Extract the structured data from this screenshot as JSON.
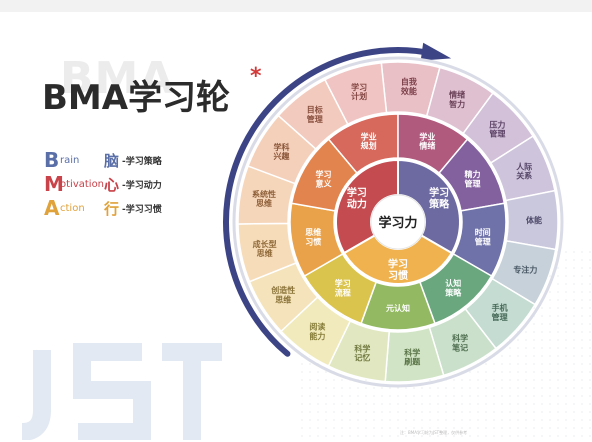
{
  "title": {
    "shadow_text": "BMA",
    "main_text": "BMA学习轮",
    "star": "*"
  },
  "legend": [
    {
      "letter": "B",
      "rest": "rain",
      "cn": "脑",
      "desc": "-学习策略",
      "color": "#5a6fa8"
    },
    {
      "letter": "M",
      "rest": "otivation",
      "cn": "心",
      "desc": "-学习动力",
      "color": "#c8434a"
    },
    {
      "letter": "A",
      "rest": "ction",
      "cn": "行",
      "desc": "-学习习惯",
      "color": "#e0a23a"
    }
  ],
  "center": {
    "label": "学习力"
  },
  "inner_ring": [
    {
      "label": [
        "学习",
        "动力"
      ]
    },
    {
      "label": [
        "学习",
        "策略"
      ]
    },
    {
      "label": [
        "学习",
        "习惯"
      ]
    }
  ],
  "middle_ring": [
    {
      "label": [
        "学业",
        "规划"
      ]
    },
    {
      "label": [
        "学业",
        "情绪"
      ]
    },
    {
      "label": [
        "精力",
        "管理"
      ]
    },
    {
      "label": [
        "时间",
        "管理"
      ]
    },
    {
      "label": [
        "认知",
        "策略"
      ]
    },
    {
      "label": [
        "元认知"
      ]
    },
    {
      "label": [
        "学习",
        "流程"
      ]
    },
    {
      "label": [
        "思维",
        "习惯"
      ]
    },
    {
      "label": [
        "学习",
        "意义"
      ]
    }
  ],
  "outer_ring": [
    {
      "label": [
        "自我",
        "效能"
      ]
    },
    {
      "label": [
        "情绪",
        "智力"
      ]
    },
    {
      "label": [
        "压力",
        "管理"
      ]
    },
    {
      "label": [
        "人际",
        "关系"
      ]
    },
    {
      "label": [
        "体能"
      ]
    },
    {
      "label": [
        "专注力"
      ]
    },
    {
      "label": [
        "手机",
        "管理"
      ]
    },
    {
      "label": [
        "科学",
        "笔记"
      ]
    },
    {
      "label": [
        "科学",
        "刷题"
      ]
    },
    {
      "label": [
        "科学",
        "记忆"
      ]
    },
    {
      "label": [
        "阅读",
        "能力"
      ]
    },
    {
      "label": [
        "创造性",
        "思维"
      ]
    },
    {
      "label": [
        "成长型",
        "思维"
      ]
    },
    {
      "label": [
        "系统性",
        "思维"
      ]
    },
    {
      "label": [
        "学科",
        "兴趣"
      ]
    },
    {
      "label": [
        "目标",
        "管理"
      ]
    },
    {
      "label": [
        "学习",
        "计划"
      ]
    }
  ],
  "footer": "注：BMA学习轮为JST整理，仅供参考"
}
